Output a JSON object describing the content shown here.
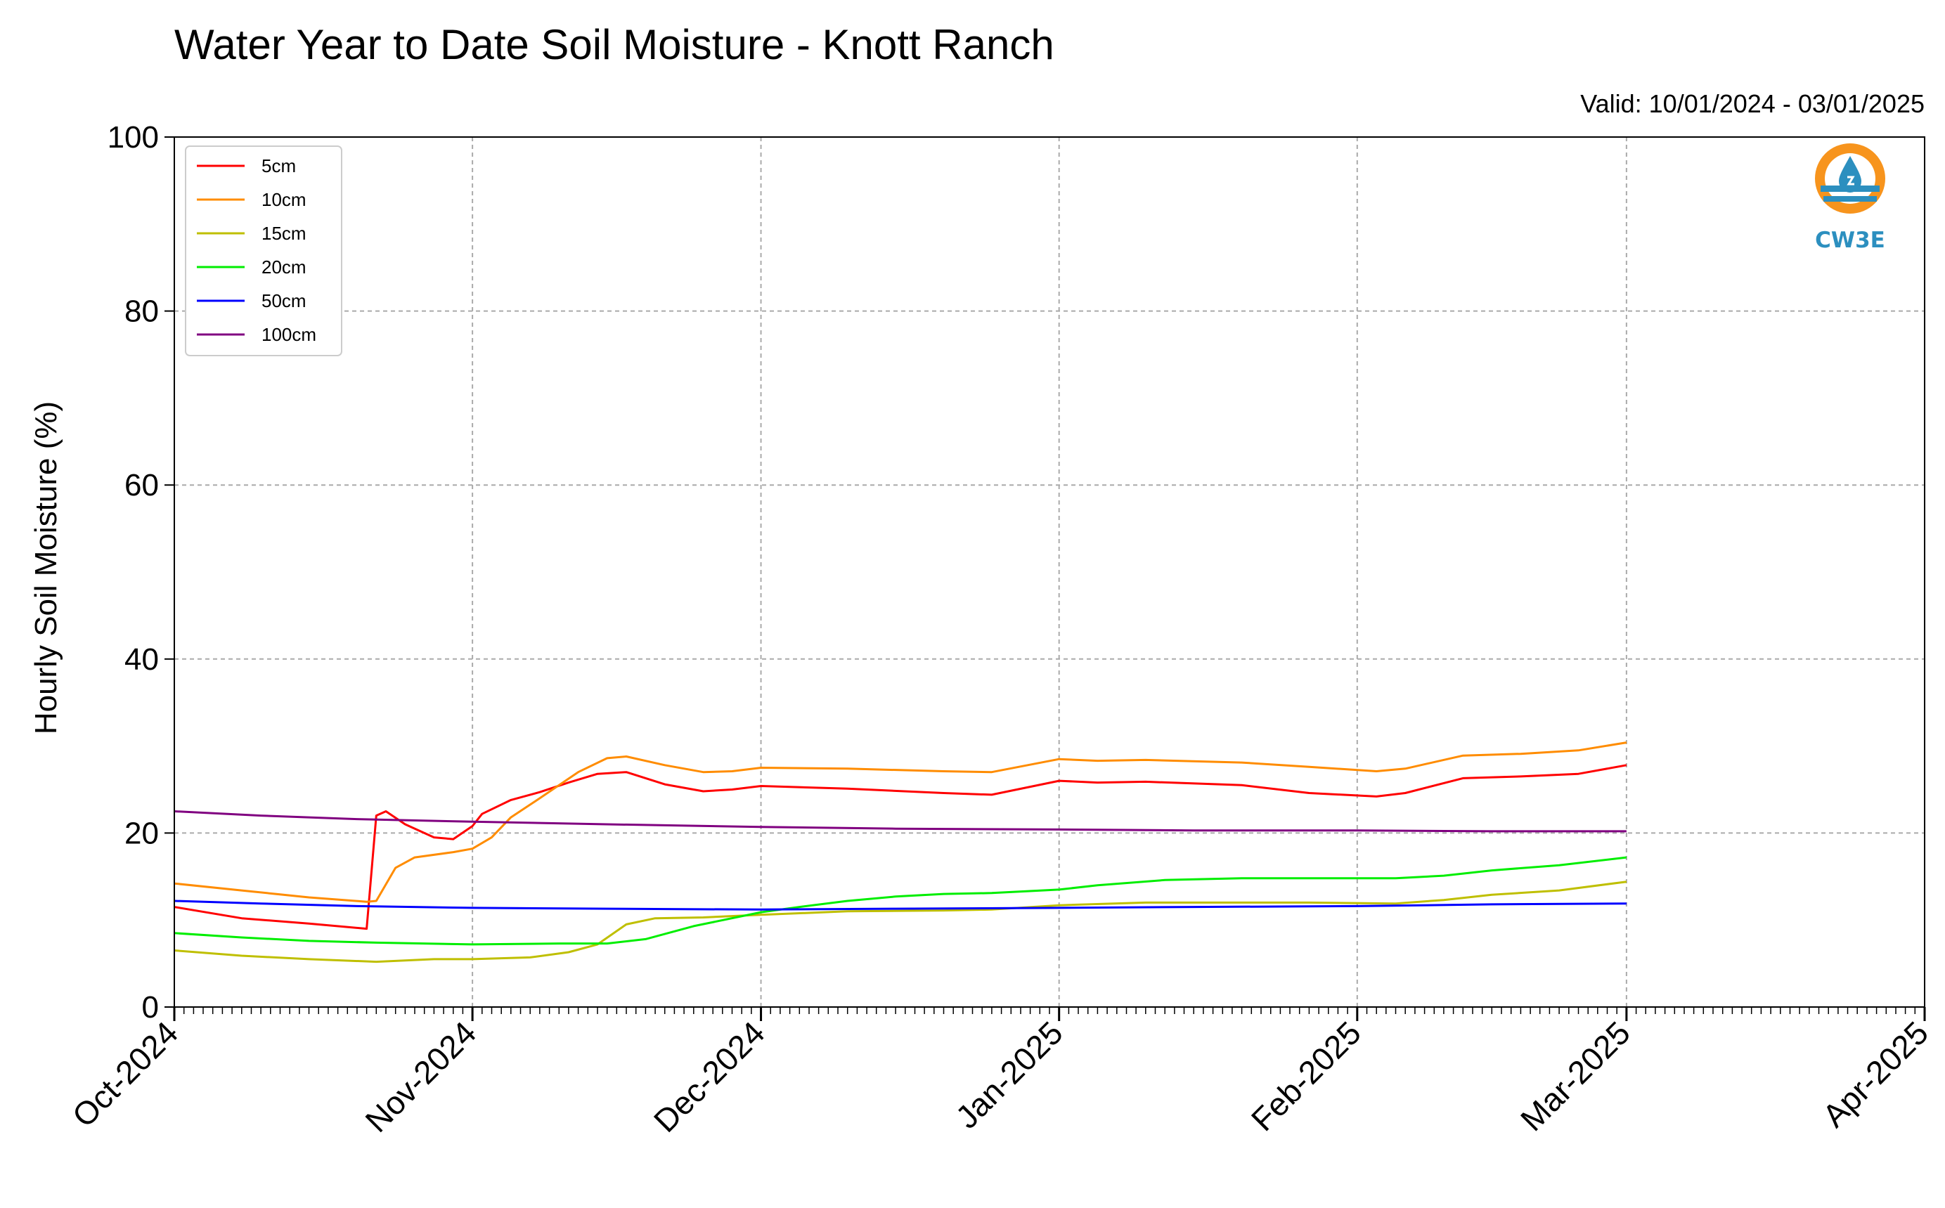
{
  "chart_data": {
    "type": "line",
    "title": "Water Year to Date Soil Moisture - Knott Ranch",
    "subtitle": "Valid: 10/01/2024 - 03/01/2025",
    "ylabel": "Hourly Soil Moisture (%)",
    "xlabel": "",
    "xlim": [
      "2024-10-01",
      "2025-04-01"
    ],
    "ylim": [
      0,
      100
    ],
    "yticks": [
      0,
      20,
      40,
      60,
      80,
      100
    ],
    "xticks": [
      {
        "date": "2024-10-01",
        "label": "Oct-2024"
      },
      {
        "date": "2024-11-01",
        "label": "Nov-2024"
      },
      {
        "date": "2024-12-01",
        "label": "Dec-2024"
      },
      {
        "date": "2025-01-01",
        "label": "Jan-2025"
      },
      {
        "date": "2025-02-01",
        "label": "Feb-2025"
      },
      {
        "date": "2025-03-01",
        "label": "Mar-2025"
      },
      {
        "date": "2025-04-01",
        "label": "Apr-2025"
      }
    ],
    "grid": true,
    "legend": "top-left",
    "series": [
      {
        "name": "5cm",
        "color": "#ff0000",
        "points": [
          [
            "2024-10-01",
            11.5
          ],
          [
            "2024-10-08",
            10.2
          ],
          [
            "2024-10-15",
            9.6
          ],
          [
            "2024-10-21",
            9.0
          ],
          [
            "2024-10-22",
            22.0
          ],
          [
            "2024-10-23",
            22.5
          ],
          [
            "2024-10-25",
            21.0
          ],
          [
            "2024-10-28",
            19.5
          ],
          [
            "2024-10-30",
            19.3
          ],
          [
            "2024-11-01",
            20.8
          ],
          [
            "2024-11-02",
            22.2
          ],
          [
            "2024-11-05",
            23.8
          ],
          [
            "2024-11-08",
            24.7
          ],
          [
            "2024-11-11",
            25.8
          ],
          [
            "2024-11-14",
            26.8
          ],
          [
            "2024-11-17",
            27.0
          ],
          [
            "2024-11-21",
            25.6
          ],
          [
            "2024-11-25",
            24.8
          ],
          [
            "2024-11-28",
            25.0
          ],
          [
            "2024-12-01",
            25.4
          ],
          [
            "2024-12-10",
            25.1
          ],
          [
            "2024-12-20",
            24.6
          ],
          [
            "2024-12-25",
            24.4
          ],
          [
            "2025-01-01",
            26.0
          ],
          [
            "2025-01-05",
            25.8
          ],
          [
            "2025-01-10",
            25.9
          ],
          [
            "2025-01-20",
            25.5
          ],
          [
            "2025-01-27",
            24.6
          ],
          [
            "2025-02-03",
            24.2
          ],
          [
            "2025-02-06",
            24.6
          ],
          [
            "2025-02-12",
            26.3
          ],
          [
            "2025-02-18",
            26.5
          ],
          [
            "2025-02-24",
            26.8
          ],
          [
            "2025-03-01",
            27.8
          ]
        ]
      },
      {
        "name": "10cm",
        "color": "#ff8c00",
        "points": [
          [
            "2024-10-01",
            14.2
          ],
          [
            "2024-10-08",
            13.4
          ],
          [
            "2024-10-15",
            12.6
          ],
          [
            "2024-10-21",
            12.1
          ],
          [
            "2024-10-22",
            12.2
          ],
          [
            "2024-10-24",
            16.0
          ],
          [
            "2024-10-26",
            17.2
          ],
          [
            "2024-10-30",
            17.8
          ],
          [
            "2024-11-01",
            18.2
          ],
          [
            "2024-11-03",
            19.5
          ],
          [
            "2024-11-05",
            21.8
          ],
          [
            "2024-11-08",
            24.0
          ],
          [
            "2024-11-12",
            27.0
          ],
          [
            "2024-11-15",
            28.6
          ],
          [
            "2024-11-17",
            28.8
          ],
          [
            "2024-11-21",
            27.8
          ],
          [
            "2024-11-25",
            27.0
          ],
          [
            "2024-11-28",
            27.1
          ],
          [
            "2024-12-01",
            27.5
          ],
          [
            "2024-12-10",
            27.4
          ],
          [
            "2024-12-20",
            27.1
          ],
          [
            "2024-12-25",
            27.0
          ],
          [
            "2025-01-01",
            28.5
          ],
          [
            "2025-01-05",
            28.3
          ],
          [
            "2025-01-10",
            28.4
          ],
          [
            "2025-01-20",
            28.1
          ],
          [
            "2025-01-27",
            27.6
          ],
          [
            "2025-02-03",
            27.1
          ],
          [
            "2025-02-06",
            27.4
          ],
          [
            "2025-02-12",
            28.9
          ],
          [
            "2025-02-18",
            29.1
          ],
          [
            "2025-02-24",
            29.5
          ],
          [
            "2025-03-01",
            30.4
          ]
        ]
      },
      {
        "name": "15cm",
        "color": "#bfbf00",
        "points": [
          [
            "2024-10-01",
            6.5
          ],
          [
            "2024-10-08",
            5.9
          ],
          [
            "2024-10-15",
            5.5
          ],
          [
            "2024-10-22",
            5.2
          ],
          [
            "2024-10-28",
            5.5
          ],
          [
            "2024-11-01",
            5.5
          ],
          [
            "2024-11-07",
            5.7
          ],
          [
            "2024-11-11",
            6.3
          ],
          [
            "2024-11-14",
            7.2
          ],
          [
            "2024-11-17",
            9.5
          ],
          [
            "2024-11-20",
            10.2
          ],
          [
            "2024-11-25",
            10.3
          ],
          [
            "2024-12-01",
            10.6
          ],
          [
            "2024-12-10",
            11.0
          ],
          [
            "2024-12-20",
            11.1
          ],
          [
            "2024-12-25",
            11.2
          ],
          [
            "2025-01-01",
            11.7
          ],
          [
            "2025-01-10",
            12.0
          ],
          [
            "2025-01-20",
            12.0
          ],
          [
            "2025-01-27",
            12.0
          ],
          [
            "2025-02-05",
            11.9
          ],
          [
            "2025-02-10",
            12.3
          ],
          [
            "2025-02-15",
            12.9
          ],
          [
            "2025-02-22",
            13.4
          ],
          [
            "2025-03-01",
            14.4
          ]
        ]
      },
      {
        "name": "20cm",
        "color": "#00ee00",
        "points": [
          [
            "2024-10-01",
            8.5
          ],
          [
            "2024-10-08",
            8.0
          ],
          [
            "2024-10-15",
            7.6
          ],
          [
            "2024-10-22",
            7.4
          ],
          [
            "2024-11-01",
            7.2
          ],
          [
            "2024-11-10",
            7.3
          ],
          [
            "2024-11-15",
            7.3
          ],
          [
            "2024-11-19",
            7.8
          ],
          [
            "2024-11-24",
            9.3
          ],
          [
            "2024-12-01",
            10.9
          ],
          [
            "2024-12-05",
            11.5
          ],
          [
            "2024-12-10",
            12.2
          ],
          [
            "2024-12-15",
            12.7
          ],
          [
            "2024-12-20",
            13.0
          ],
          [
            "2024-12-25",
            13.1
          ],
          [
            "2025-01-01",
            13.5
          ],
          [
            "2025-01-05",
            14.0
          ],
          [
            "2025-01-12",
            14.6
          ],
          [
            "2025-01-20",
            14.8
          ],
          [
            "2025-01-27",
            14.8
          ],
          [
            "2025-02-05",
            14.8
          ],
          [
            "2025-02-10",
            15.1
          ],
          [
            "2025-02-15",
            15.7
          ],
          [
            "2025-02-22",
            16.3
          ],
          [
            "2025-03-01",
            17.2
          ]
        ]
      },
      {
        "name": "50cm",
        "color": "#0000ff",
        "points": [
          [
            "2024-10-01",
            12.2
          ],
          [
            "2024-10-10",
            11.9
          ],
          [
            "2024-10-20",
            11.6
          ],
          [
            "2024-11-01",
            11.4
          ],
          [
            "2024-11-15",
            11.3
          ],
          [
            "2024-12-01",
            11.2
          ],
          [
            "2024-12-15",
            11.3
          ],
          [
            "2025-01-01",
            11.4
          ],
          [
            "2025-01-15",
            11.5
          ],
          [
            "2025-02-01",
            11.6
          ],
          [
            "2025-02-15",
            11.8
          ],
          [
            "2025-03-01",
            11.9
          ]
        ]
      },
      {
        "name": "100cm",
        "color": "#800080",
        "points": [
          [
            "2024-10-01",
            22.5
          ],
          [
            "2024-10-10",
            22.0
          ],
          [
            "2024-10-20",
            21.6
          ],
          [
            "2024-11-01",
            21.3
          ],
          [
            "2024-11-15",
            21.0
          ],
          [
            "2024-12-01",
            20.7
          ],
          [
            "2024-12-15",
            20.5
          ],
          [
            "2025-01-01",
            20.4
          ],
          [
            "2025-01-15",
            20.3
          ],
          [
            "2025-02-01",
            20.3
          ],
          [
            "2025-02-15",
            20.2
          ],
          [
            "2025-03-01",
            20.2
          ]
        ]
      }
    ]
  },
  "logo": {
    "text": "CW3E",
    "color": "#2c8fbf",
    "accent": "#f7941d",
    "icon": "water-drop-logo-icon"
  }
}
